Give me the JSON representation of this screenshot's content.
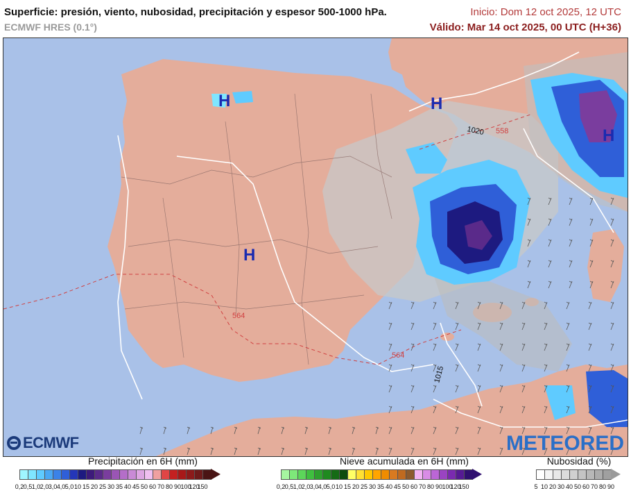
{
  "header": {
    "title": "Superficie: presión, viento, nubosidad, precipitación y espesor 500-1000 hPa.",
    "model": "ECMWF HRES (0.1°)",
    "init": "Inicio: Dom 12 oct 2025, 12 UTC",
    "valid": "Válido: Mar 14 oct 2025, 00 UTC (H+36)"
  },
  "map": {
    "highs": [
      "H",
      "H",
      "H",
      "H"
    ],
    "isobar_labels": [
      "1020",
      "1015"
    ],
    "thickness_labels": [
      "564",
      "564",
      "558"
    ],
    "colors": {
      "sea": "#a9c1e8",
      "land": "#e4ad9b",
      "isobar": "#ffffff",
      "thickness": "#d04040"
    }
  },
  "logos": {
    "left": "ECMWF",
    "right": "METEORED"
  },
  "legends": {
    "precip": {
      "title": "Precipitación en 6H (mm)",
      "ticks": [
        "0,2",
        "0,5",
        "1,0",
        "2,0",
        "3,0",
        "4,0",
        "5,0",
        "10",
        "15",
        "20",
        "25",
        "30",
        "35",
        "40",
        "45",
        "50",
        "60",
        "70",
        "80",
        "90",
        "100",
        "120",
        "150"
      ],
      "colors": [
        "#9ff6ff",
        "#7fe6ff",
        "#5fcbff",
        "#4aa8f4",
        "#3b82e8",
        "#2f5fd8",
        "#2436b8",
        "#1d1a80",
        "#3d1a7a",
        "#5a2a8a",
        "#7a3d9e",
        "#9a55b5",
        "#b46ec8",
        "#c98ad6",
        "#dea6e3",
        "#f0bff0",
        "#f0a0a0",
        "#e04545",
        "#c42020",
        "#a81818",
        "#8c1a1a",
        "#6e1a1a",
        "#4a1414"
      ]
    },
    "snow": {
      "title": "Nieve acumulada en 6H (mm)",
      "ticks": [
        "0,2",
        "0,5",
        "1,0",
        "2,0",
        "3,0",
        "4,0",
        "5,0",
        "10",
        "15",
        "20",
        "25",
        "30",
        "35",
        "40",
        "45",
        "50",
        "60",
        "70",
        "80",
        "90",
        "100",
        "120",
        "150"
      ],
      "colors": [
        "#a6f5a0",
        "#7ee87a",
        "#5cd65a",
        "#3fbf3f",
        "#2ea02e",
        "#1f8a1f",
        "#156b15",
        "#0d4d0d",
        "#ffff66",
        "#ffe033",
        "#ffc800",
        "#ffa500",
        "#f08c00",
        "#d97a20",
        "#c06a20",
        "#8c5a2e",
        "#f2b3f2",
        "#d98ce6",
        "#bb66d6",
        "#9a44c2",
        "#7a2ab0",
        "#561a94",
        "#301070"
      ]
    },
    "cloud": {
      "title": "Nubosidad (%)",
      "ticks": [
        "5",
        "10",
        "20",
        "30",
        "40",
        "50",
        "60",
        "70",
        "80",
        "90"
      ],
      "colors": [
        "#ffffff",
        "#f4f4f4",
        "#e8e8e8",
        "#dcdcdc",
        "#d0d0d0",
        "#c4c4c4",
        "#b8b8b8",
        "#acacac",
        "#a0a0a0"
      ]
    }
  }
}
